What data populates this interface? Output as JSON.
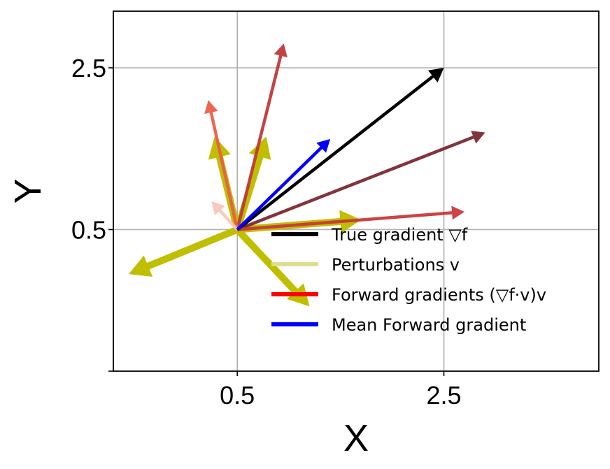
{
  "chart_data": {
    "type": "quiver",
    "xlabel": "X",
    "ylabel": "Y",
    "xlim": [
      -0.7,
      4.0
    ],
    "ylim": [
      -1.25,
      3.2
    ],
    "xticks": [
      0.5,
      2.5
    ],
    "yticks": [
      0.5,
      2.5
    ],
    "grid": true,
    "origin": [
      0.5,
      0.5
    ],
    "legend": {
      "placement": "lower-right",
      "entries": [
        {
          "label": "True gradient ▽f",
          "color": "#000000"
        },
        {
          "label": "Perturbations v",
          "color": "#dede90"
        },
        {
          "label": "Forward gradients (▽f·v)v",
          "color": "#ff0000"
        },
        {
          "label": "Mean Forward gradient",
          "color": "#0000ff"
        }
      ]
    },
    "series": [
      {
        "name": "True gradient ▽f",
        "color": "#000000",
        "vectors": [
          {
            "dx": 2.0,
            "dy": 2.0
          }
        ]
      },
      {
        "name": "Perturbations v",
        "color": "#bfbf00",
        "vectors": [
          {
            "dx": -1.05,
            "dy": -0.55
          },
          {
            "dx": 0.7,
            "dy": -0.95
          },
          {
            "dx": 1.2,
            "dy": 0.12
          },
          {
            "dx": -0.22,
            "dy": 1.15
          },
          {
            "dx": 0.28,
            "dy": 1.15
          }
        ]
      },
      {
        "name": "Forward gradients (▽f·v)v",
        "vectors": [
          {
            "dx": 0.45,
            "dy": 2.3,
            "color": "#c0393b"
          },
          {
            "dx": 2.4,
            "dy": 1.2,
            "color": "#7b2a32"
          },
          {
            "dx": 2.2,
            "dy": 0.22,
            "color": "#c9393b"
          },
          {
            "dx": -0.28,
            "dy": 1.6,
            "color": "#ea5f49"
          },
          {
            "dx": -0.25,
            "dy": 0.35,
            "color": "#f8c8b8"
          }
        ]
      },
      {
        "name": "Mean Forward gradient",
        "color": "#0000ff",
        "vectors": [
          {
            "dx": 0.9,
            "dy": 1.12
          }
        ]
      }
    ]
  }
}
